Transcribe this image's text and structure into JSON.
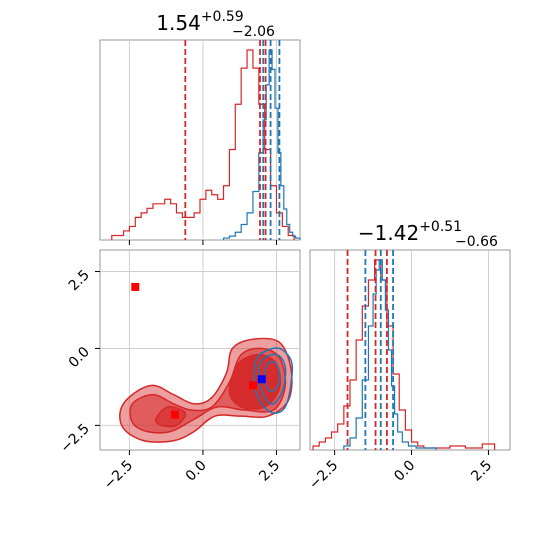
{
  "chart_data": {
    "type": "corner",
    "colors": {
      "series_a": "#d62728",
      "series_b": "#1f77b4",
      "marker_a": "#ff0000",
      "marker_b": "#0000ff"
    },
    "grid": true,
    "param1": {
      "range": [
        -3.5,
        3.3
      ],
      "ticks": [
        -2.5,
        0.0,
        2.5
      ],
      "tick_labels": [
        "−2.5",
        "0.0",
        "2.5"
      ],
      "title": {
        "main": "1.54",
        "sup": "+0.59",
        "sub": "−2.06"
      },
      "quantiles_a": [
        -0.6,
        1.94,
        2.13
      ],
      "quantiles_b": [
        2.05,
        2.3,
        2.6
      ],
      "hist_a": [
        [
          -3.0,
          0.01
        ],
        [
          -2.8,
          0.01
        ],
        [
          -2.6,
          0.02
        ],
        [
          -2.4,
          0.03
        ],
        [
          -2.2,
          0.05
        ],
        [
          -2.0,
          0.06
        ],
        [
          -1.8,
          0.07
        ],
        [
          -1.6,
          0.08
        ],
        [
          -1.4,
          0.08
        ],
        [
          -1.2,
          0.09
        ],
        [
          -1.0,
          0.08
        ],
        [
          -0.8,
          0.06
        ],
        [
          -0.6,
          0.05
        ],
        [
          -0.4,
          0.05
        ],
        [
          -0.2,
          0.06
        ],
        [
          0.0,
          0.09
        ],
        [
          0.2,
          0.11
        ],
        [
          0.4,
          0.1
        ],
        [
          0.6,
          0.09
        ],
        [
          0.8,
          0.12
        ],
        [
          1.0,
          0.2
        ],
        [
          1.2,
          0.3
        ],
        [
          1.4,
          0.38
        ],
        [
          1.6,
          0.42
        ],
        [
          1.8,
          0.38
        ],
        [
          2.0,
          0.3
        ],
        [
          2.2,
          0.2
        ],
        [
          2.4,
          0.12
        ],
        [
          2.6,
          0.06
        ],
        [
          2.8,
          0.03
        ],
        [
          3.0,
          0.01
        ]
      ],
      "hist_b": [
        [
          0.8,
          0.01
        ],
        [
          1.0,
          0.02
        ],
        [
          1.2,
          0.04
        ],
        [
          1.4,
          0.08
        ],
        [
          1.6,
          0.14
        ],
        [
          1.8,
          0.25
        ],
        [
          2.0,
          0.45
        ],
        [
          2.1,
          0.62
        ],
        [
          2.2,
          0.8
        ],
        [
          2.3,
          0.98
        ],
        [
          2.4,
          0.88
        ],
        [
          2.5,
          0.68
        ],
        [
          2.6,
          0.45
        ],
        [
          2.7,
          0.28
        ],
        [
          2.8,
          0.16
        ],
        [
          2.9,
          0.08
        ],
        [
          3.0,
          0.04
        ],
        [
          3.1,
          0.02
        ],
        [
          3.2,
          0.01
        ]
      ]
    },
    "param2": {
      "range": [
        -3.3,
        3.2
      ],
      "ticks": [
        -2.5,
        0.0,
        2.5
      ],
      "tick_labels": [
        "−2.5",
        "0.0",
        "2.5"
      ],
      "title": {
        "main": "−1.42",
        "sup": "+0.51",
        "sub": "−0.66"
      },
      "quantiles_a": [
        -2.08,
        -1.17,
        -0.8
      ],
      "quantiles_b": [
        -1.5,
        -1.0,
        -0.6
      ],
      "hist_a": [
        [
          -3.1,
          0.02
        ],
        [
          -2.9,
          0.04
        ],
        [
          -2.7,
          0.06
        ],
        [
          -2.5,
          0.09
        ],
        [
          -2.3,
          0.13
        ],
        [
          -2.1,
          0.22
        ],
        [
          -1.9,
          0.35
        ],
        [
          -1.7,
          0.55
        ],
        [
          -1.5,
          0.72
        ],
        [
          -1.3,
          0.85
        ],
        [
          -1.1,
          0.95
        ],
        [
          -0.9,
          0.85
        ],
        [
          -0.7,
          0.62
        ],
        [
          -0.5,
          0.38
        ],
        [
          -0.3,
          0.2
        ],
        [
          -0.1,
          0.1
        ],
        [
          0.1,
          0.04
        ],
        [
          0.3,
          0.02
        ],
        [
          0.5,
          0.01
        ],
        [
          1.0,
          0.01
        ],
        [
          1.5,
          0.02
        ],
        [
          2.0,
          0.01
        ],
        [
          2.6,
          0.03
        ]
      ],
      "hist_b": [
        [
          -2.1,
          0.02
        ],
        [
          -1.9,
          0.06
        ],
        [
          -1.7,
          0.16
        ],
        [
          -1.5,
          0.35
        ],
        [
          -1.3,
          0.62
        ],
        [
          -1.2,
          0.78
        ],
        [
          -1.1,
          0.9
        ],
        [
          -1.0,
          0.95
        ],
        [
          -0.9,
          0.85
        ],
        [
          -0.8,
          0.7
        ],
        [
          -0.7,
          0.5
        ],
        [
          -0.6,
          0.32
        ],
        [
          -0.5,
          0.18
        ],
        [
          -0.4,
          0.09
        ],
        [
          -0.2,
          0.04
        ],
        [
          0.0,
          0.02
        ],
        [
          0.3,
          0.01
        ],
        [
          0.7,
          0.01
        ]
      ]
    },
    "joint": {
      "markers_a": [
        [
          -2.3,
          2.0
        ],
        [
          -0.95,
          -2.15
        ],
        [
          1.7,
          -1.2
        ]
      ],
      "marker_b": [
        2.0,
        -1.0
      ],
      "contours_a": [
        {
          "level": "outer",
          "points": [
            [
              -2.7,
              -2.6
            ],
            [
              -2.8,
              -2.0
            ],
            [
              -2.4,
              -1.5
            ],
            [
              -1.7,
              -1.2
            ],
            [
              -1.0,
              -1.5
            ],
            [
              -0.3,
              -1.8
            ],
            [
              0.3,
              -1.6
            ],
            [
              0.8,
              -0.8
            ],
            [
              1.0,
              0.0
            ],
            [
              1.7,
              0.3
            ],
            [
              2.6,
              0.2
            ],
            [
              3.0,
              -0.7
            ],
            [
              2.9,
              -1.7
            ],
            [
              2.2,
              -2.2
            ],
            [
              1.3,
              -2.2
            ],
            [
              0.4,
              -2.2
            ],
            [
              -0.3,
              -2.7
            ],
            [
              -1.0,
              -3.0
            ],
            [
              -2.0,
              -3.0
            ]
          ]
        },
        {
          "level": "mid",
          "points": [
            [
              -2.4,
              -2.4
            ],
            [
              -2.4,
              -1.8
            ],
            [
              -1.7,
              -1.5
            ],
            [
              -1.0,
              -1.8
            ],
            [
              -0.4,
              -2.0
            ],
            [
              0.3,
              -1.9
            ],
            [
              0.9,
              -1.1
            ],
            [
              1.3,
              -0.2
            ],
            [
              2.0,
              0.0
            ],
            [
              2.6,
              -0.3
            ],
            [
              2.8,
              -1.2
            ],
            [
              2.4,
              -2.0
            ],
            [
              1.4,
              -2.0
            ],
            [
              0.5,
              -1.9
            ],
            [
              -0.3,
              -2.3
            ],
            [
              -1.1,
              -2.7
            ],
            [
              -1.9,
              -2.7
            ]
          ]
        },
        {
          "level": "inner",
          "points": [
            [
              0.9,
              -1.4
            ],
            [
              1.2,
              -0.5
            ],
            [
              1.9,
              -0.2
            ],
            [
              2.5,
              -0.5
            ],
            [
              2.6,
              -1.3
            ],
            [
              2.1,
              -1.9
            ],
            [
              1.3,
              -1.9
            ]
          ]
        },
        {
          "level": "inner2",
          "points": [
            [
              -1.6,
              -2.3
            ],
            [
              -1.2,
              -1.9
            ],
            [
              -0.6,
              -2.1
            ],
            [
              -0.9,
              -2.5
            ],
            [
              -1.4,
              -2.5
            ]
          ]
        }
      ],
      "contours_b": [
        {
          "level": "outer",
          "points": [
            [
              1.75,
              -1.2
            ],
            [
              1.8,
              -0.4
            ],
            [
              2.1,
              -0.1
            ],
            [
              2.6,
              0.0
            ],
            [
              3.0,
              -0.4
            ],
            [
              3.0,
              -1.1
            ],
            [
              2.8,
              -1.9
            ],
            [
              2.4,
              -2.1
            ],
            [
              2.0,
              -1.8
            ]
          ]
        },
        {
          "level": "mid",
          "points": [
            [
              1.9,
              -1.1
            ],
            [
              2.0,
              -0.4
            ],
            [
              2.5,
              -0.2
            ],
            [
              2.8,
              -0.6
            ],
            [
              2.7,
              -1.4
            ],
            [
              2.3,
              -1.8
            ]
          ]
        },
        {
          "level": "inner",
          "points": [
            [
              2.1,
              -1.0
            ],
            [
              2.2,
              -0.5
            ],
            [
              2.5,
              -0.5
            ],
            [
              2.6,
              -1.1
            ],
            [
              2.3,
              -1.4
            ]
          ]
        }
      ]
    }
  }
}
